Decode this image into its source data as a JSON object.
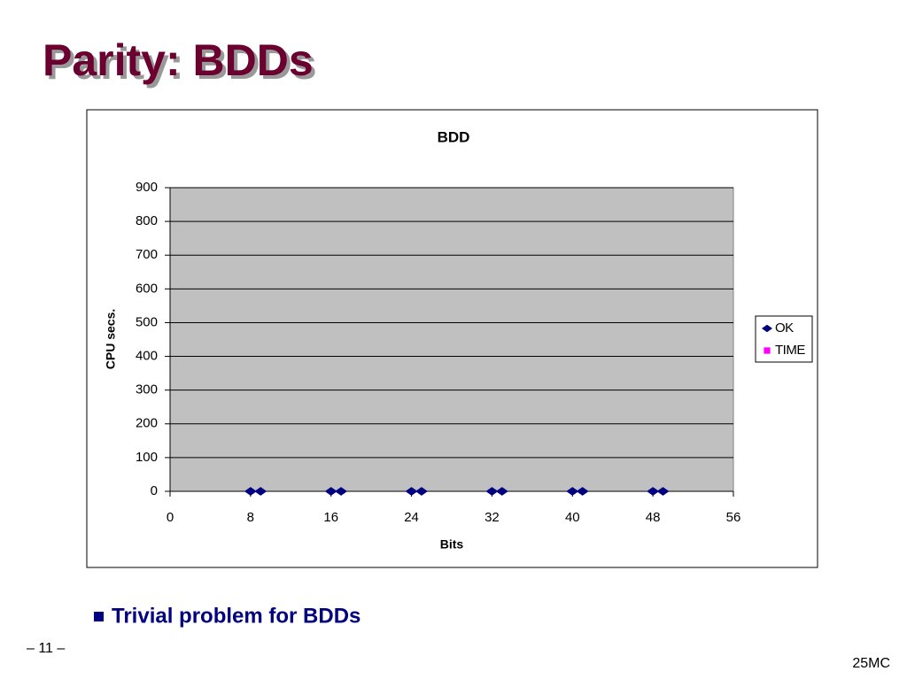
{
  "slide": {
    "title": "Parity: BDDs",
    "bullet": "Trivial problem for BDDs",
    "page": "– 11 –",
    "footer": "25MC"
  },
  "chart_data": {
    "type": "scatter",
    "title": "BDD",
    "x_label": "Bits",
    "y_label": "CPU secs.",
    "series": [
      {
        "name": "OK",
        "color": "#000080",
        "marker": "diamond",
        "x": [
          8,
          9,
          16,
          17,
          24,
          25,
          32,
          33,
          40,
          41,
          48,
          49
        ],
        "values": [
          0,
          0,
          0,
          0,
          0,
          0,
          0,
          0,
          0,
          0,
          0,
          0
        ]
      },
      {
        "name": "TIME",
        "color": "#ff00ff",
        "marker": "square",
        "x": [],
        "values": []
      }
    ],
    "xlim": [
      0,
      56
    ],
    "xticks": [
      0,
      8,
      16,
      24,
      32,
      40,
      48,
      56
    ],
    "ylim": [
      0,
      900
    ],
    "yticks": [
      0,
      100,
      200,
      300,
      400,
      500,
      600,
      700,
      800,
      900
    ],
    "grid": true,
    "legend": "right"
  }
}
